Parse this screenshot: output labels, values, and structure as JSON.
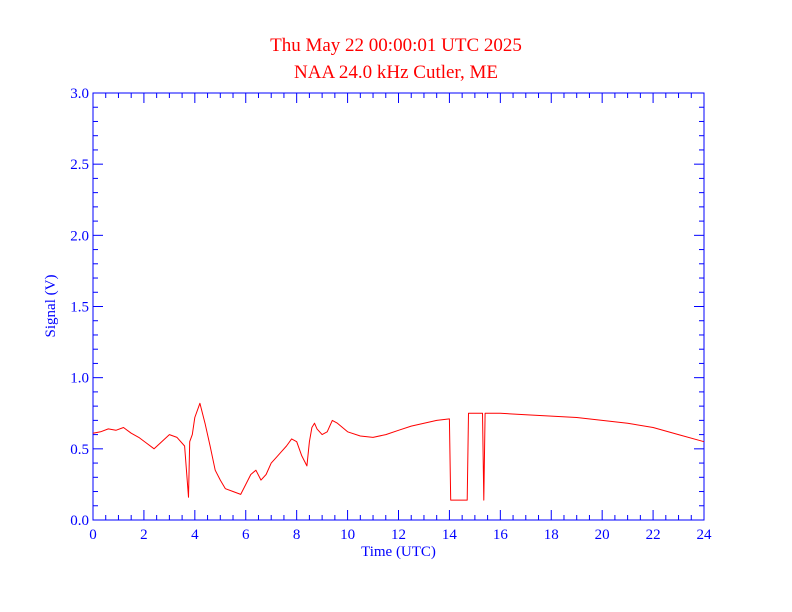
{
  "chart_data": {
    "type": "line",
    "title": "Thu May 22 00:00:01 UTC 2025",
    "subtitle": "NAA 24.0 kHz Cutler, ME",
    "xlabel": "Time (UTC)",
    "ylabel": "Signal (V)",
    "xlim": [
      0,
      24
    ],
    "ylim": [
      0,
      3.0
    ],
    "x_ticks": [
      0,
      2,
      4,
      6,
      8,
      10,
      12,
      14,
      16,
      18,
      20,
      22,
      24
    ],
    "y_ticks": [
      0.0,
      0.5,
      1.0,
      1.5,
      2.0,
      2.5,
      3.0
    ],
    "y_tick_labels": [
      "0.0",
      "0.5",
      "1.0",
      "1.5",
      "2.0",
      "2.5",
      "3.0"
    ],
    "grid": false,
    "colors": {
      "line": "#ff0000",
      "axes": "#0000ff",
      "title": "#ff0000"
    },
    "series": [
      {
        "x": [
          0.0,
          0.3,
          0.6,
          0.9,
          1.2,
          1.5,
          1.8,
          2.1,
          2.4,
          2.7,
          3.0,
          3.3,
          3.6,
          3.75,
          3.8,
          3.9,
          4.0,
          4.2,
          4.4,
          4.6,
          4.8,
          5.0,
          5.2,
          5.5,
          5.8,
          6.0,
          6.2,
          6.4,
          6.6,
          6.8,
          7.0,
          7.2,
          7.4,
          7.6,
          7.8,
          8.0,
          8.2,
          8.4,
          8.5,
          8.6,
          8.7,
          8.8,
          9.0,
          9.2,
          9.4,
          9.6,
          9.8,
          10.0,
          10.5,
          11.0,
          11.5,
          12.0,
          12.5,
          13.0,
          13.5,
          14.0,
          14.05,
          14.1,
          14.4,
          14.7,
          14.75,
          15.0,
          15.3,
          15.35,
          15.4,
          15.45,
          16.0,
          17.0,
          18.0,
          19.0,
          20.0,
          21.0,
          22.0,
          23.0,
          24.0
        ],
        "y": [
          0.61,
          0.62,
          0.64,
          0.63,
          0.65,
          0.61,
          0.58,
          0.54,
          0.5,
          0.55,
          0.6,
          0.58,
          0.52,
          0.16,
          0.55,
          0.6,
          0.72,
          0.82,
          0.68,
          0.52,
          0.35,
          0.28,
          0.22,
          0.2,
          0.18,
          0.25,
          0.32,
          0.35,
          0.28,
          0.32,
          0.4,
          0.44,
          0.48,
          0.52,
          0.57,
          0.55,
          0.45,
          0.38,
          0.55,
          0.65,
          0.68,
          0.64,
          0.6,
          0.62,
          0.7,
          0.68,
          0.65,
          0.62,
          0.59,
          0.58,
          0.6,
          0.63,
          0.66,
          0.68,
          0.7,
          0.71,
          0.14,
          0.14,
          0.14,
          0.14,
          0.75,
          0.75,
          0.75,
          0.14,
          0.75,
          0.75,
          0.75,
          0.74,
          0.73,
          0.72,
          0.7,
          0.68,
          0.65,
          0.6,
          0.55
        ]
      }
    ]
  }
}
